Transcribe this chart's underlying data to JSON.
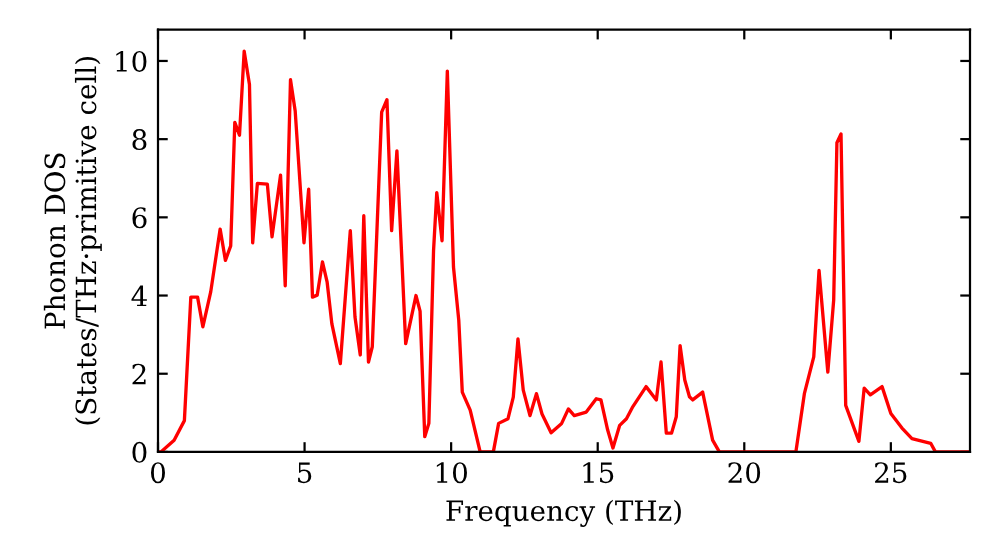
{
  "chart_data": {
    "type": "line",
    "xlabel": "Frequency (THz)",
    "ylabel": "Phonon DOS\n(States/THz·primitive cell)",
    "xlim": [
      0,
      27.7
    ],
    "ylim": [
      0,
      10.8
    ],
    "xticks": [
      0,
      5,
      10,
      15,
      20,
      25
    ],
    "yticks": [
      0,
      2,
      4,
      6,
      8,
      10
    ],
    "grid": false,
    "marker": "none",
    "line_style": "solid",
    "series": [
      {
        "color": "#ff0000",
        "x": [
          0,
          0.1,
          0.55,
          0.9,
          1.12,
          1.35,
          1.53,
          1.8,
          2.12,
          2.3,
          2.48,
          2.62,
          2.78,
          2.94,
          3.12,
          3.23,
          3.39,
          3.73,
          3.89,
          4.18,
          4.34,
          4.52,
          4.68,
          4.98,
          5.14,
          5.27,
          5.43,
          5.61,
          5.77,
          5.93,
          6.22,
          6.56,
          6.72,
          6.9,
          7.02,
          7.18,
          7.31,
          7.63,
          7.81,
          7.97,
          8.15,
          8.45,
          8.8,
          8.94,
          9.1,
          9.24,
          9.4,
          9.51,
          9.69,
          9.87,
          10.08,
          10.26,
          10.38,
          10.65,
          10.99,
          11.44,
          11.62,
          11.94,
          12.12,
          12.28,
          12.46,
          12.69,
          12.91,
          13.1,
          13.41,
          13.77,
          14.0,
          14.2,
          14.61,
          14.95,
          15.11,
          15.34,
          15.52,
          15.75,
          15.98,
          16.2,
          16.65,
          17.0,
          17.16,
          17.34,
          17.52,
          17.68,
          17.81,
          17.97,
          18.13,
          18.24,
          18.58,
          18.92,
          19.15,
          21.76,
          22.05,
          22.37,
          22.55,
          22.85,
          23.05,
          23.16,
          23.3,
          23.46,
          23.91,
          24.09,
          24.3,
          24.7,
          25.0,
          25.38,
          25.72,
          26.36,
          26.52,
          27.65
        ],
        "values": [
          0,
          0,
          0.3,
          0.8,
          3.96,
          3.96,
          3.2,
          4.1,
          5.7,
          4.9,
          5.27,
          8.43,
          8.1,
          10.25,
          9.4,
          5.35,
          6.87,
          6.85,
          5.5,
          7.08,
          4.25,
          9.52,
          8.72,
          5.35,
          6.72,
          3.96,
          4.01,
          4.86,
          4.34,
          3.28,
          2.26,
          5.66,
          3.45,
          2.48,
          6.04,
          2.3,
          2.69,
          8.69,
          9.01,
          5.66,
          7.7,
          2.77,
          4.0,
          3.6,
          0.39,
          0.73,
          5.15,
          6.63,
          5.4,
          9.74,
          4.73,
          3.37,
          1.53,
          1.07,
          0,
          0,
          0.73,
          0.85,
          1.4,
          2.89,
          1.58,
          0.93,
          1.49,
          0.97,
          0.49,
          0.73,
          1.1,
          0.93,
          1.02,
          1.36,
          1.33,
          0.56,
          0.1,
          0.68,
          0.85,
          1.16,
          1.67,
          1.33,
          2.3,
          0.48,
          0.48,
          0.9,
          2.72,
          1.84,
          1.41,
          1.33,
          1.53,
          0.3,
          0,
          0,
          1.49,
          2.43,
          4.64,
          2.04,
          3.88,
          7.91,
          8.13,
          1.19,
          0.27,
          1.63,
          1.46,
          1.67,
          0.98,
          0.61,
          0.34,
          0.22,
          0,
          0
        ]
      }
    ]
  }
}
